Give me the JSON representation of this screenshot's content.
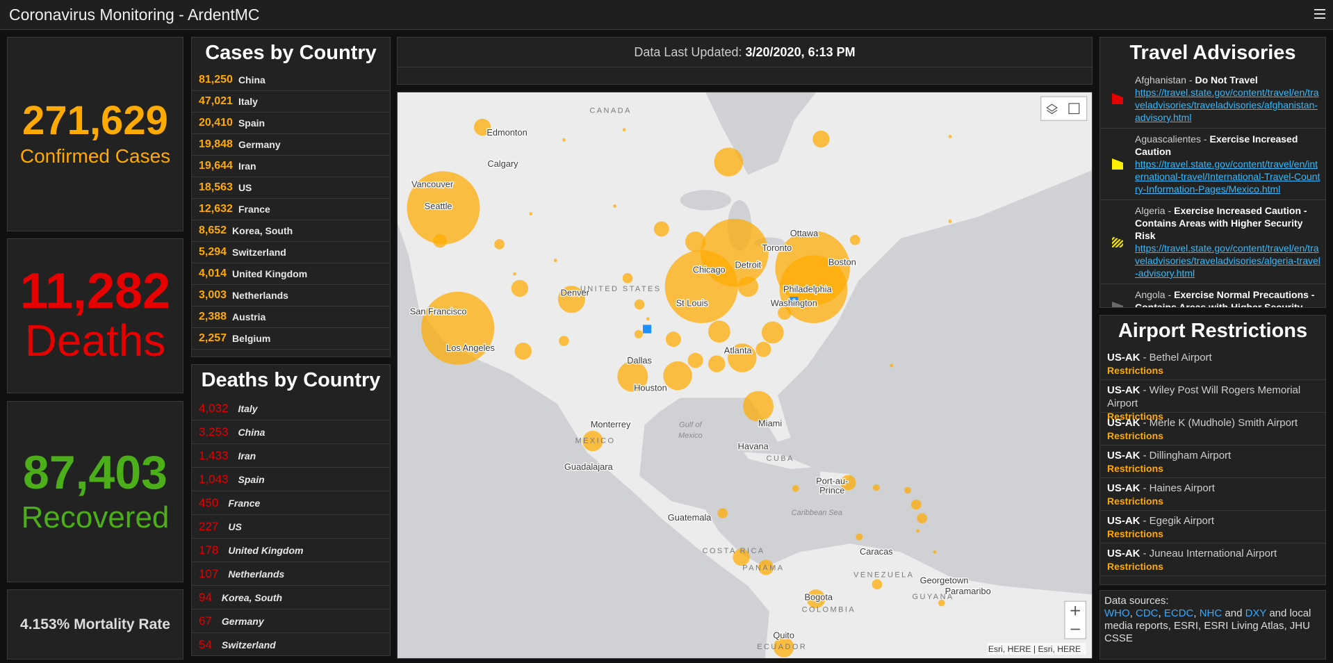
{
  "header": {
    "title": "Coronavirus Monitoring - ArdentMC"
  },
  "stats": {
    "confirmed": {
      "value": "271,629",
      "label": "Confirmed Cases"
    },
    "deaths": {
      "value": "11,282",
      "label": "Deaths"
    },
    "recovered": {
      "value": "87,403",
      "label": "Recovered"
    },
    "mortality": "4.153% Mortality Rate"
  },
  "cases_by_country": {
    "title": "Cases by Country",
    "rows": [
      {
        "count": "81,250",
        "country": "China"
      },
      {
        "count": "47,021",
        "country": "Italy"
      },
      {
        "count": "20,410",
        "country": "Spain"
      },
      {
        "count": "19,848",
        "country": "Germany"
      },
      {
        "count": "19,644",
        "country": "Iran"
      },
      {
        "count": "18,563",
        "country": "US"
      },
      {
        "count": "12,632",
        "country": "France"
      },
      {
        "count": "8,652",
        "country": "Korea, South"
      },
      {
        "count": "5,294",
        "country": "Switzerland"
      },
      {
        "count": "4,014",
        "country": "United Kingdom"
      },
      {
        "count": "3,003",
        "country": "Netherlands"
      },
      {
        "count": "2,388",
        "country": "Austria"
      },
      {
        "count": "2,257",
        "country": "Belgium"
      }
    ]
  },
  "deaths_by_country": {
    "title": "Deaths by Country",
    "rows": [
      {
        "count": "4,032",
        "country": "Italy"
      },
      {
        "count": "3,253",
        "country": "China"
      },
      {
        "count": "1,433",
        "country": "Iran"
      },
      {
        "count": "1,043",
        "country": "Spain"
      },
      {
        "count": "450",
        "country": "France"
      },
      {
        "count": "227",
        "country": "US"
      },
      {
        "count": "178",
        "country": "United Kingdom"
      },
      {
        "count": "107",
        "country": "Netherlands"
      },
      {
        "count": "94",
        "country": "Korea, South"
      },
      {
        "count": "67",
        "country": "Germany"
      },
      {
        "count": "54",
        "country": "Switzerland"
      }
    ]
  },
  "last_updated": {
    "label": "Data Last Updated:",
    "value": "3/20/2020, 6:13 PM"
  },
  "map": {
    "labels": [
      "CANADA",
      "Edmonton",
      "Calgary",
      "Vancouver",
      "Seattle",
      "San Francisco",
      "Los Angeles",
      "Denver",
      "UNITED STATES",
      "Chicago",
      "Detroit",
      "Toronto",
      "Ottawa",
      "Boston",
      "Philadelphia",
      "Washington",
      "St Louis",
      "Atlanta",
      "Dallas",
      "Houston",
      "Monterrey",
      "MEXICO",
      "Gulf of",
      "Mexico",
      "Guadalajara",
      "Havana",
      "CUBA",
      "Miami",
      "Port-au-",
      "Prince",
      "Caribbean Sea",
      "Guatemala",
      "COSTA RICA",
      "PANAMA",
      "Caracas",
      "VENEZUELA",
      "Georgetown",
      "Paramaribo",
      "GUYANA",
      "Bogota",
      "COLOMBIA",
      "Quito",
      "ECUADOR"
    ],
    "attribution": "Esri, HERE | Esri, HERE"
  },
  "travel_advisories": {
    "title": "Travel Advisories",
    "items": [
      {
        "place": "Afghanistan -",
        "level": "Do Not Travel",
        "url": "https://travel.state.gov/content/travel/en/traveladvisories/traveladvisories/afghanistan-advisory.html"
      },
      {
        "place": "Aguascalientes -",
        "level": "Exercise Increased Caution",
        "url": "https://travel.state.gov/content/travel/en/international-travel/International-Travel-Country-Information-Pages/Mexico.html"
      },
      {
        "place": "Algeria -",
        "level": "Exercise Increased Caution - Contains Areas with Higher Security Risk",
        "url": "https://travel.state.gov/content/travel/en/traveladvisories/traveladvisories/algeria-travel-advisory.html"
      },
      {
        "place": "Angola -",
        "level": "Exercise Normal Precautions - Contains Areas with Higher Security Risk"
      }
    ]
  },
  "airport_restrictions": {
    "title": "Airport Restrictions",
    "items": [
      {
        "code": "US-AK",
        "name": "- Bethel Airport",
        "status": "Restrictions"
      },
      {
        "code": "US-AK",
        "name": "- Wiley Post Will Rogers Memorial Airport",
        "status": "Restrictions"
      },
      {
        "code": "US-AK",
        "name": "- Merle K (Mudhole) Smith Airport",
        "status": "Restrictions"
      },
      {
        "code": "US-AK",
        "name": "- Dillingham Airport",
        "status": "Restrictions"
      },
      {
        "code": "US-AK",
        "name": "- Haines Airport",
        "status": "Restrictions"
      },
      {
        "code": "US-AK",
        "name": "- Egegik Airport",
        "status": "Restrictions"
      },
      {
        "code": "US-AK",
        "name": "- Juneau International Airport",
        "status": "Restrictions"
      }
    ]
  },
  "data_sources": {
    "label": "Data sources:",
    "segments": [
      {
        "text": "WHO",
        "link": true
      },
      {
        "text": ", "
      },
      {
        "text": "CDC",
        "link": true
      },
      {
        "text": ", "
      },
      {
        "text": "ECDC",
        "link": true
      },
      {
        "text": ", "
      },
      {
        "text": "NHC",
        "link": true
      },
      {
        "text": " and "
      },
      {
        "text": "DXY",
        "link": true
      },
      {
        "text": " and local media reports, ESRI, ESRI Living Atlas, JHU CSSE"
      }
    ]
  }
}
